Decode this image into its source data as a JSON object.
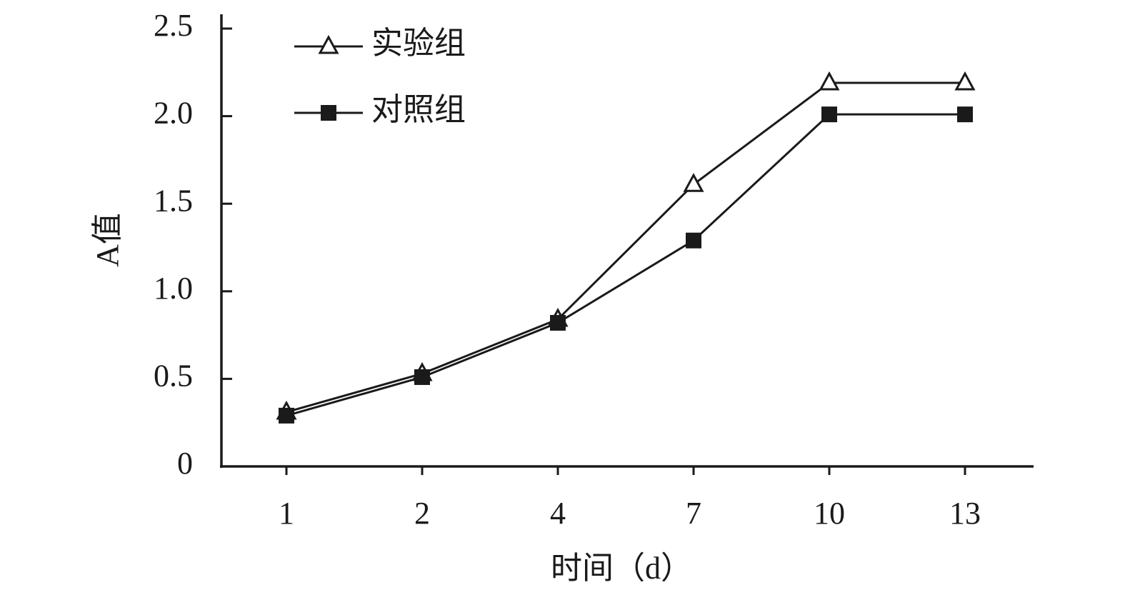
{
  "chart_data": {
    "type": "line",
    "x_label": "时间（d）",
    "y_label": "A值",
    "categories": [
      "1",
      "2",
      "4",
      "7",
      "10",
      "13"
    ],
    "series": [
      {
        "name": "实验组",
        "color": "#1a1a1a",
        "marker": "triangle-open",
        "values": [
          0.31,
          0.53,
          0.84,
          1.61,
          2.19,
          2.19
        ]
      },
      {
        "name": "对照组",
        "color": "#1a1a1a",
        "marker": "square",
        "values": [
          0.29,
          0.51,
          0.82,
          1.29,
          2.01,
          2.01
        ]
      }
    ],
    "ylim": [
      0,
      2.5
    ],
    "yticks": [
      0,
      0.5,
      {
        "value": 1,
        "label": "1.0"
      },
      1.5,
      {
        "value": 2,
        "label": "2.0"
      },
      2.5
    ],
    "grid": false,
    "legend": "upper left"
  }
}
